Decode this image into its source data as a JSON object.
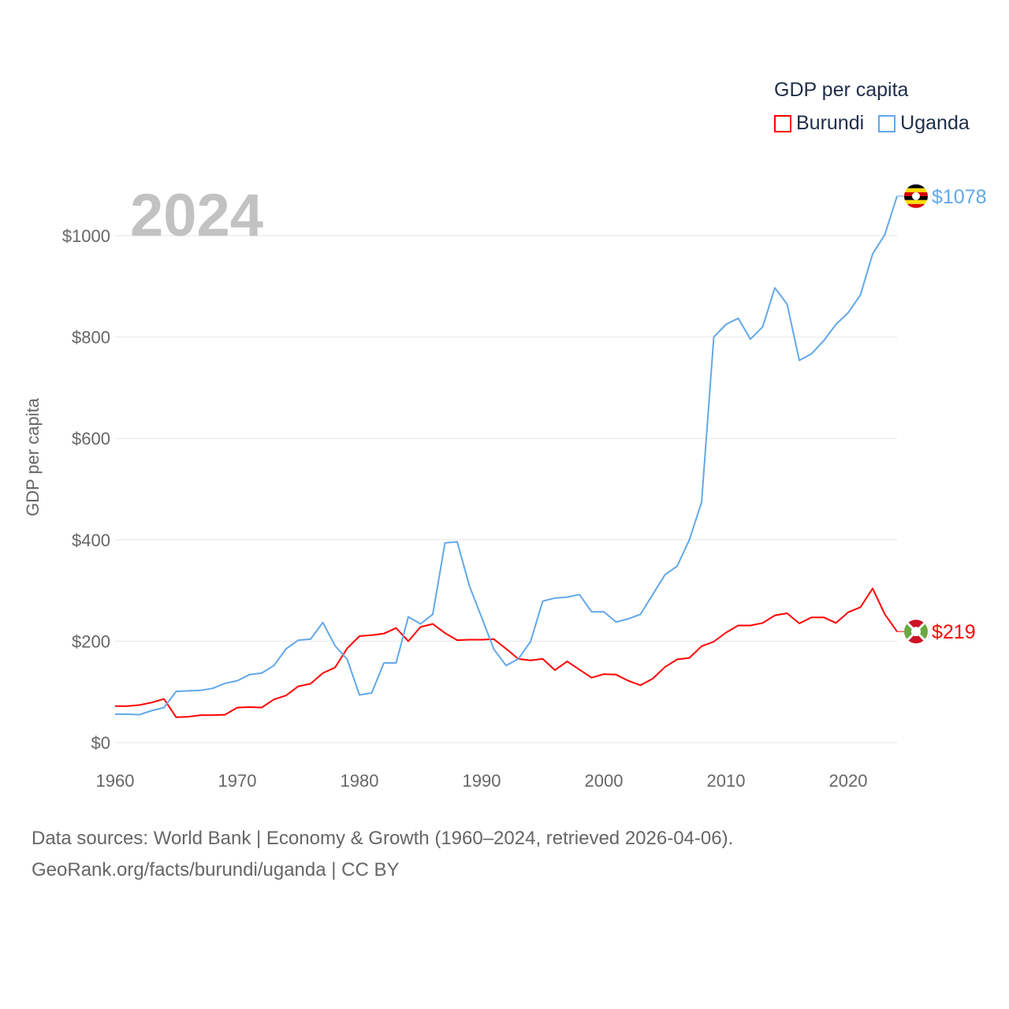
{
  "legend": {
    "title": "GDP per capita",
    "items": [
      {
        "label": "Burundi",
        "color": "#ff0000"
      },
      {
        "label": "Uganda",
        "color": "#62a8ea"
      }
    ]
  },
  "year_label": "2024",
  "footer": {
    "line1": "Data sources: World Bank | Economy & Growth (1960–2024, retrieved 2026-04-06).",
    "line2": "GeoRank.org/facts/burundi/uganda | CC BY"
  },
  "chart_data": {
    "type": "line",
    "title": "GDP per capita",
    "xlabel": "",
    "ylabel": "GDP per capita",
    "xlim": [
      1960,
      2024
    ],
    "ylim": [
      0,
      1000
    ],
    "xticks": [
      1960,
      1970,
      1980,
      1990,
      2000,
      2010,
      2020
    ],
    "yticks": [
      0,
      200,
      400,
      600,
      800,
      1000
    ],
    "ytick_labels": [
      "$0",
      "$200",
      "$400",
      "$600",
      "$800",
      "$1000"
    ],
    "grid": true,
    "legend_position": "top-right",
    "x_start": 1960,
    "series": [
      {
        "name": "Burundi",
        "color": "#ff0000",
        "end_label": "$219",
        "flag": "burundi-flag",
        "values": [
          72,
          72,
          74,
          79,
          86,
          50,
          51,
          54,
          54,
          55,
          69,
          70,
          69,
          85,
          93,
          111,
          116,
          137,
          148,
          186,
          210,
          212,
          215,
          226,
          200,
          228,
          234,
          216,
          202,
          203,
          203,
          204,
          185,
          165,
          162,
          165,
          143,
          160,
          144,
          128,
          135,
          134,
          122,
          113,
          126,
          149,
          164,
          167,
          190,
          199,
          217,
          231,
          231,
          236,
          251,
          255,
          235,
          247,
          247,
          236,
          257,
          267,
          304,
          253,
          219
        ]
      },
      {
        "name": "Uganda",
        "color": "#62a8ea",
        "end_label": "$1078",
        "flag": "uganda-flag",
        "values": [
          56,
          56,
          55,
          63,
          69,
          101,
          102,
          103,
          107,
          117,
          122,
          134,
          137,
          152,
          185,
          202,
          204,
          237,
          191,
          164,
          94,
          98,
          157,
          157,
          248,
          234,
          253,
          394,
          396,
          309,
          247,
          184,
          152,
          165,
          199,
          279,
          285,
          287,
          292,
          258,
          258,
          238,
          244,
          253,
          292,
          331,
          348,
          400,
          474,
          800,
          825,
          837,
          796,
          820,
          897,
          865,
          754,
          767,
          793,
          825,
          848,
          883,
          964,
          1002,
          1078
        ]
      }
    ]
  }
}
